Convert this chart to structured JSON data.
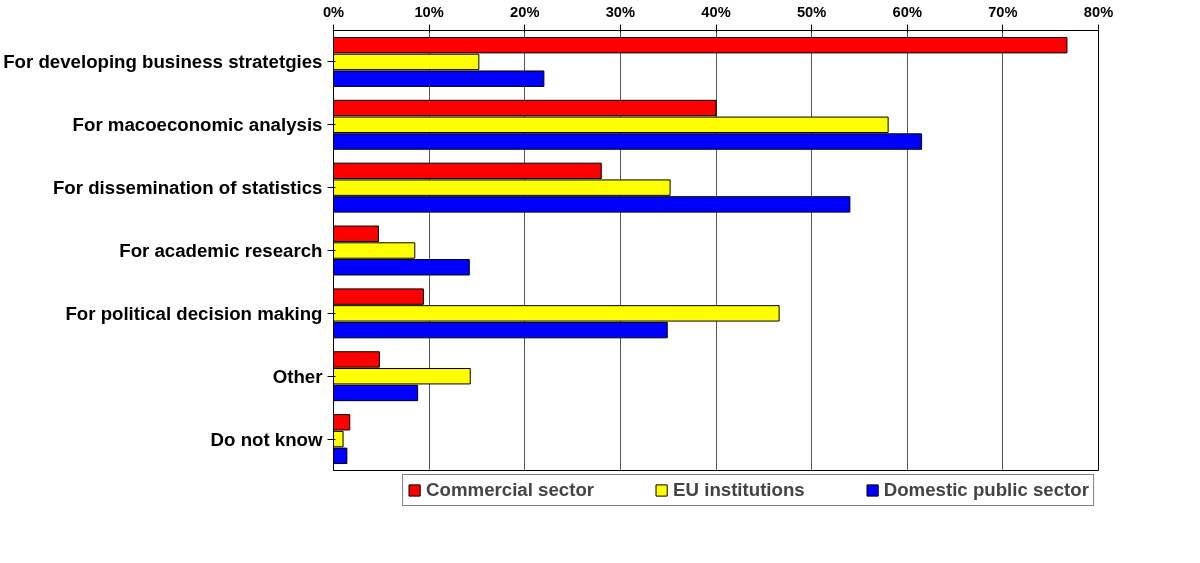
{
  "chart_data": {
    "type": "bar",
    "orientation": "horizontal",
    "categories": [
      "For developing business stratetgies",
      "For macoeconomic analysis",
      "For dissemination of statistics",
      "For academic research",
      "For political decision making",
      "Other",
      "Do not know"
    ],
    "series": [
      {
        "name": "Commercial sector",
        "color": "#ff0000",
        "values": [
          76.7,
          40.0,
          28.0,
          4.7,
          9.4,
          4.8,
          1.7
        ]
      },
      {
        "name": "EU institutions",
        "color": "#ffff00",
        "values": [
          15.2,
          58.0,
          35.2,
          8.5,
          46.6,
          14.3,
          1.0
        ]
      },
      {
        "name": "Domestic public sector",
        "color": "#0000ff",
        "values": [
          22.0,
          61.5,
          54.0,
          14.2,
          34.9,
          8.8,
          1.4
        ]
      }
    ],
    "xlim": [
      0,
      80
    ],
    "xticks": [
      {
        "value": 0,
        "label": "0%"
      },
      {
        "value": 10,
        "label": "10%"
      },
      {
        "value": 20,
        "label": "20%"
      },
      {
        "value": 30,
        "label": "30%"
      },
      {
        "value": 40,
        "label": "40%"
      },
      {
        "value": 50,
        "label": "50%"
      },
      {
        "value": 60,
        "label": "60%"
      },
      {
        "value": 70,
        "label": "70%"
      },
      {
        "value": 80,
        "label": "80%"
      }
    ],
    "grid": "x",
    "legend": "bottom"
  }
}
